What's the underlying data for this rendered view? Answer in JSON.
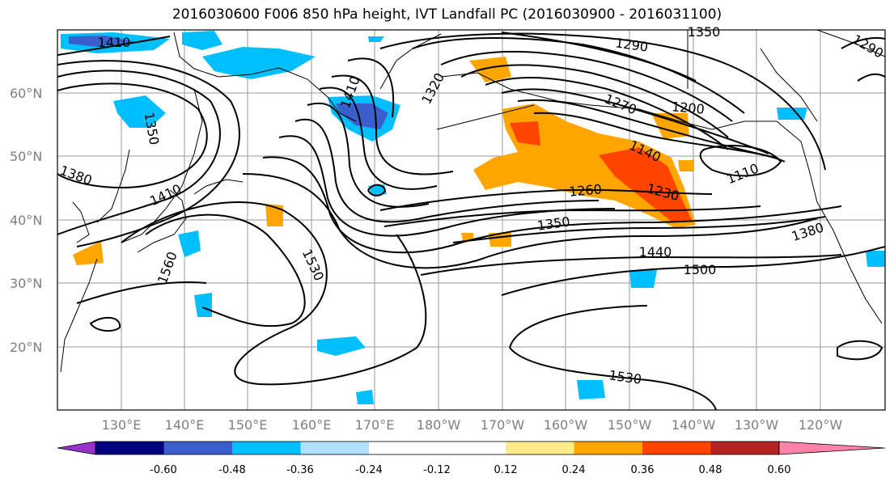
{
  "title": "2016030600 F006 850 hPa height, IVT Landfall PC (2016030900 - 2016031100)",
  "lat_ticks": [
    "60°N",
    "50°N",
    "40°N",
    "30°N",
    "20°N"
  ],
  "lon_ticks": [
    "130°E",
    "140°E",
    "150°E",
    "160°E",
    "170°E",
    "180°W",
    "170°W",
    "160°W",
    "150°W",
    "140°W",
    "130°W",
    "120°W"
  ],
  "contour_labels": [
    "1410",
    "1350",
    "1380",
    "1410",
    "1560",
    "1530",
    "1410",
    "1320",
    "1290",
    "1350",
    "1290",
    "1270",
    "1200",
    "1140",
    "1110",
    "1260",
    "1230",
    "1350",
    "1440",
    "1500",
    "1380",
    "1530"
  ],
  "colorbar": {
    "colors": [
      "#9932cc",
      "#000080",
      "#3a5fcd",
      "#00bfff",
      "#b0e2ff",
      "#ffffff",
      "#ffffff",
      "#ffec8b",
      "#ffa500",
      "#ff4500",
      "#b22222",
      "#ff82ab"
    ],
    "labels": [
      "-0.60",
      "-0.48",
      "-0.36",
      "-0.24",
      "-0.12",
      "0.12",
      "0.24",
      "0.36",
      "0.48",
      "0.60"
    ]
  }
}
